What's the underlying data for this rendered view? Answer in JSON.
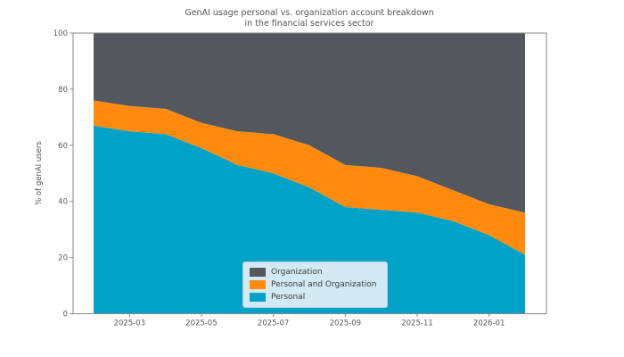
{
  "title": {
    "line1": "GenAI usage personal vs. organization account breakdown",
    "line2": "in the financial services sector"
  },
  "ylabel": "% of genAI users",
  "colors": {
    "personal": "#00a2c8",
    "personal_and_organization": "#ff8a0e",
    "organization": "#52585e",
    "axis": "#888888",
    "tick_label": "#5a5a5a",
    "legend_background": "#d3eaf4"
  },
  "legend": {
    "items": [
      {
        "label": "Organization",
        "color": "#52585e"
      },
      {
        "label": "Personal and Organization",
        "color": "#ff8a0e"
      },
      {
        "label": "Personal",
        "color": "#00a2c8"
      }
    ]
  },
  "chart_data": {
    "type": "area",
    "stacked": true,
    "title": "GenAI usage personal vs. organization account breakdown in the financial services sector",
    "xlabel": "",
    "ylabel": "% of genAI users",
    "ylim": [
      0,
      100
    ],
    "grid": false,
    "legend_position": "lower center-left",
    "x": [
      "2025-02",
      "2025-03",
      "2025-04",
      "2025-05",
      "2025-06",
      "2025-07",
      "2025-08",
      "2025-09",
      "2025-10",
      "2025-11",
      "2025-12",
      "2026-01",
      "2026-02"
    ],
    "series": [
      {
        "name": "Personal",
        "color": "#00a2c8",
        "values": [
          67,
          65,
          64,
          59,
          53,
          50,
          45,
          38,
          37,
          36,
          33,
          28,
          21
        ]
      },
      {
        "name": "Personal and Organization",
        "color": "#ff8a0e",
        "values": [
          9,
          9,
          9,
          9,
          12,
          14,
          15,
          15,
          15,
          13,
          11,
          11,
          15
        ]
      },
      {
        "name": "Organization",
        "color": "#52585e",
        "values": [
          24,
          26,
          27,
          32,
          35,
          36,
          40,
          47,
          48,
          51,
          56,
          61,
          64
        ]
      }
    ],
    "series_cumulative_tops": {
      "Personal": [
        67,
        65,
        64,
        59,
        53,
        50,
        45,
        38,
        37,
        36,
        33,
        28,
        21
      ],
      "Personal and Organization": [
        76,
        74,
        73,
        68,
        65,
        64,
        60,
        53,
        52,
        49,
        44,
        39,
        36
      ],
      "Organization": [
        100,
        100,
        100,
        100,
        100,
        100,
        100,
        100,
        100,
        100,
        100,
        100,
        100
      ]
    },
    "xticks": [
      "2025-03",
      "2025-05",
      "2025-07",
      "2025-09",
      "2025-11",
      "2026-01"
    ],
    "yticks": [
      0,
      20,
      40,
      60,
      80,
      100
    ]
  }
}
